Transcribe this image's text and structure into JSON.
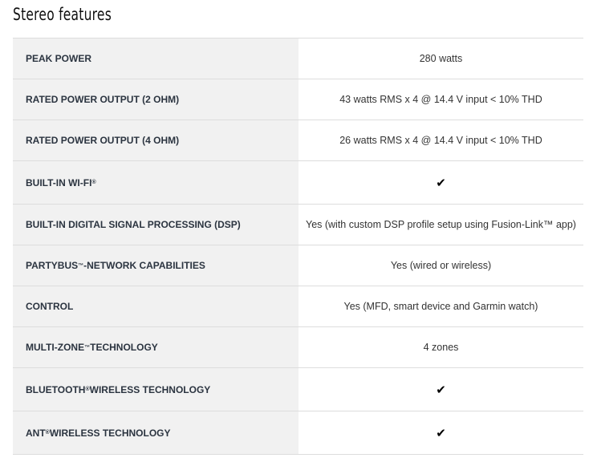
{
  "title": "Stereo features",
  "rows": [
    {
      "label": "PEAK POWER",
      "value": "280 watts"
    },
    {
      "label": "RATED POWER OUTPUT (2 OHM)",
      "value": "43 watts RMS x 4 @ 14.4 V input < 10% THD"
    },
    {
      "label": "RATED POWER OUTPUT (4 OHM)",
      "value": "26 watts RMS x 4 @ 14.4 V input < 10% THD"
    },
    {
      "label": "BUILT-IN WI-FI®",
      "value": "✔",
      "check": true
    },
    {
      "label": "BUILT-IN DIGITAL SIGNAL PROCESSING (DSP)",
      "value": "Yes (with custom DSP profile setup using Fusion-Link™ app)"
    },
    {
      "label": "PARTYBUS™-NETWORK CAPABILITIES",
      "value": "Yes (wired or wireless)"
    },
    {
      "label": "CONTROL",
      "value": "Yes (MFD, smart device and Garmin watch)"
    },
    {
      "label": "MULTI-ZONE™ TECHNOLOGY",
      "value": "4 zones"
    },
    {
      "label": "BLUETOOTH® WIRELESS TECHNOLOGY",
      "value": "✔",
      "check": true
    },
    {
      "label": "ANT® WIRELESS TECHNOLOGY",
      "value": "✔",
      "check": true
    }
  ]
}
